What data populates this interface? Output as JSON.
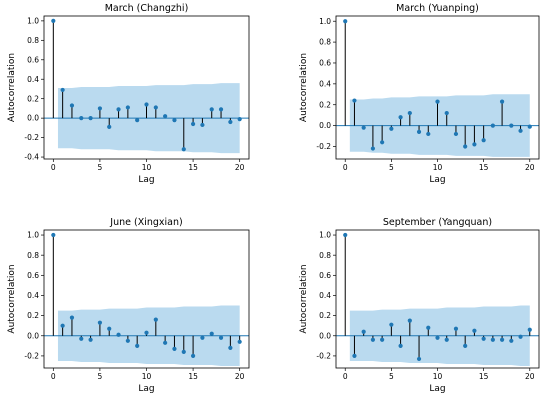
{
  "chart_data": [
    {
      "type": "stem",
      "title": "March (Changzhi)",
      "xlabel": "Lag",
      "ylabel": "Autocorrelation",
      "xlim": [
        -1,
        21
      ],
      "ylim": [
        -0.42,
        1.05
      ],
      "xticks": [
        0,
        5,
        10,
        15,
        20
      ],
      "yticks": [
        -0.4,
        -0.2,
        0.0,
        0.2,
        0.4,
        0.6,
        0.8,
        1.0
      ],
      "x": [
        0,
        1,
        2,
        3,
        4,
        5,
        6,
        7,
        8,
        9,
        10,
        11,
        12,
        13,
        14,
        15,
        16,
        17,
        18,
        19,
        20
      ],
      "values": [
        1.0,
        0.29,
        0.13,
        0.0,
        0.0,
        0.1,
        -0.09,
        0.09,
        0.11,
        -0.02,
        0.14,
        0.11,
        0.02,
        -0.02,
        -0.32,
        -0.06,
        -0.07,
        0.09,
        0.09,
        -0.04,
        -0.01
      ],
      "conf_band": [
        0.29,
        0.31,
        0.31,
        0.32,
        0.32,
        0.32,
        0.32,
        0.33,
        0.33,
        0.33,
        0.33,
        0.34,
        0.34,
        0.34,
        0.34,
        0.35,
        0.35,
        0.35,
        0.36,
        0.36,
        0.36
      ],
      "grid": false
    },
    {
      "type": "stem",
      "title": "March (Yuanping)",
      "xlabel": "Lag",
      "ylabel": "Autocorrelation",
      "xlim": [
        -1,
        21
      ],
      "ylim": [
        -0.32,
        1.05
      ],
      "xticks": [
        0,
        5,
        10,
        15,
        20
      ],
      "yticks": [
        -0.2,
        0.0,
        0.2,
        0.4,
        0.6,
        0.8,
        1.0
      ],
      "x": [
        0,
        1,
        2,
        3,
        4,
        5,
        6,
        7,
        8,
        9,
        10,
        11,
        12,
        13,
        14,
        15,
        16,
        17,
        18,
        19,
        20
      ],
      "values": [
        1.0,
        0.24,
        -0.02,
        -0.22,
        -0.16,
        -0.03,
        0.08,
        0.12,
        -0.06,
        -0.08,
        0.23,
        0.12,
        -0.08,
        -0.2,
        -0.18,
        -0.14,
        0.0,
        0.23,
        0.0,
        -0.05,
        -0.01
      ],
      "conf_band": [
        0.24,
        0.25,
        0.25,
        0.26,
        0.26,
        0.27,
        0.27,
        0.27,
        0.28,
        0.28,
        0.28,
        0.28,
        0.29,
        0.29,
        0.29,
        0.29,
        0.3,
        0.3,
        0.3,
        0.3,
        0.3
      ],
      "grid": false
    },
    {
      "type": "stem",
      "title": "June (Xingxian)",
      "xlabel": "Lag",
      "ylabel": "Autocorrelation",
      "xlim": [
        -1,
        21
      ],
      "ylim": [
        -0.32,
        1.05
      ],
      "xticks": [
        0,
        5,
        10,
        15,
        20
      ],
      "yticks": [
        -0.2,
        0.0,
        0.2,
        0.4,
        0.6,
        0.8,
        1.0
      ],
      "x": [
        0,
        1,
        2,
        3,
        4,
        5,
        6,
        7,
        8,
        9,
        10,
        11,
        12,
        13,
        14,
        15,
        16,
        17,
        18,
        19,
        20
      ],
      "values": [
        1.0,
        0.1,
        0.18,
        -0.03,
        -0.04,
        0.13,
        0.07,
        0.01,
        -0.05,
        -0.1,
        0.03,
        0.16,
        -0.07,
        -0.13,
        -0.16,
        -0.2,
        -0.02,
        0.02,
        -0.02,
        -0.12,
        -0.06
      ],
      "conf_band": [
        0.24,
        0.25,
        0.25,
        0.26,
        0.26,
        0.26,
        0.27,
        0.27,
        0.27,
        0.27,
        0.28,
        0.28,
        0.28,
        0.28,
        0.29,
        0.29,
        0.29,
        0.29,
        0.3,
        0.3,
        0.3
      ],
      "grid": false
    },
    {
      "type": "stem",
      "title": "September (Yangquan)",
      "xlabel": "Lag",
      "ylabel": "Autocorrelation",
      "xlim": [
        -1,
        21
      ],
      "ylim": [
        -0.32,
        1.05
      ],
      "xticks": [
        0,
        5,
        10,
        15,
        20
      ],
      "yticks": [
        -0.2,
        0.0,
        0.2,
        0.4,
        0.6,
        0.8,
        1.0
      ],
      "x": [
        0,
        1,
        2,
        3,
        4,
        5,
        6,
        7,
        8,
        9,
        10,
        11,
        12,
        13,
        14,
        15,
        16,
        17,
        18,
        19,
        20
      ],
      "values": [
        1.0,
        -0.2,
        0.04,
        -0.04,
        -0.04,
        0.11,
        -0.1,
        0.15,
        -0.23,
        0.08,
        -0.02,
        -0.04,
        0.07,
        -0.1,
        0.05,
        -0.03,
        -0.04,
        -0.04,
        -0.05,
        -0.01,
        0.06
      ],
      "conf_band": [
        0.24,
        0.25,
        0.25,
        0.25,
        0.26,
        0.26,
        0.26,
        0.27,
        0.27,
        0.27,
        0.27,
        0.28,
        0.28,
        0.28,
        0.28,
        0.29,
        0.29,
        0.29,
        0.29,
        0.3,
        0.3
      ],
      "grid": false
    }
  ]
}
